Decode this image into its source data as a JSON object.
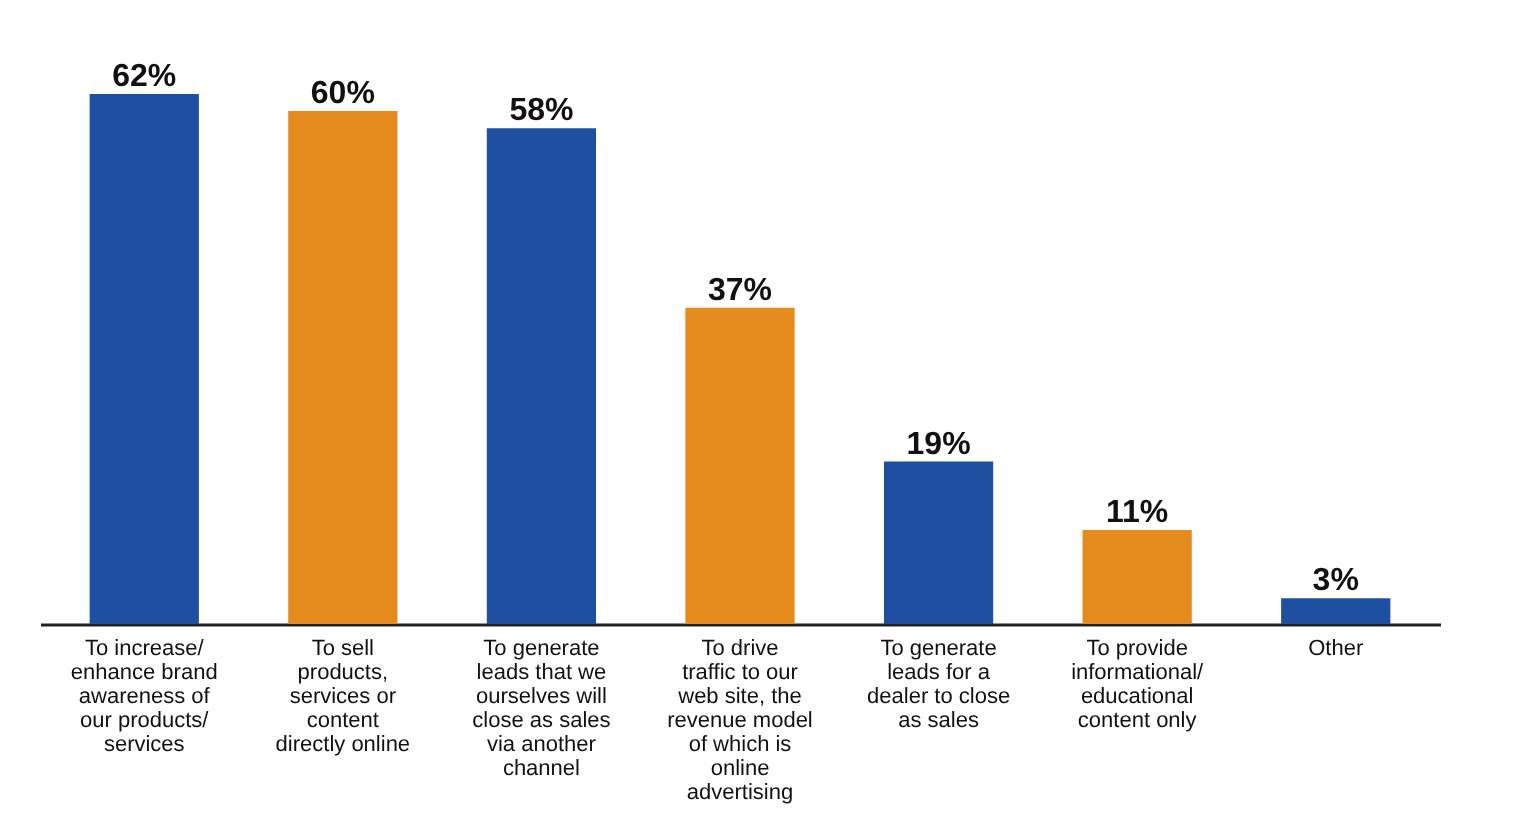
{
  "chart_data": {
    "type": "bar",
    "categories": [
      "To increase/ enhance brand awareness of our products/ services",
      "To sell products, services or content directly online",
      "To generate leads that we ourselves will close as sales via another channel",
      "To drive traffic to our web site, the revenue model of which is online advertising",
      "To generate leads for a dealer to close as sales",
      "To provide informational/ educational content only",
      "Other"
    ],
    "values": [
      62,
      60,
      58,
      37,
      19,
      11,
      3
    ],
    "colors": [
      "#1f4fa0",
      "#e58a1c",
      "#1f4fa0",
      "#e58a1c",
      "#1f4fa0",
      "#e58a1c",
      "#1f4fa0"
    ],
    "value_labels": [
      "62%",
      "60%",
      "58%",
      "37%",
      "19%",
      "11%",
      "3%"
    ]
  }
}
